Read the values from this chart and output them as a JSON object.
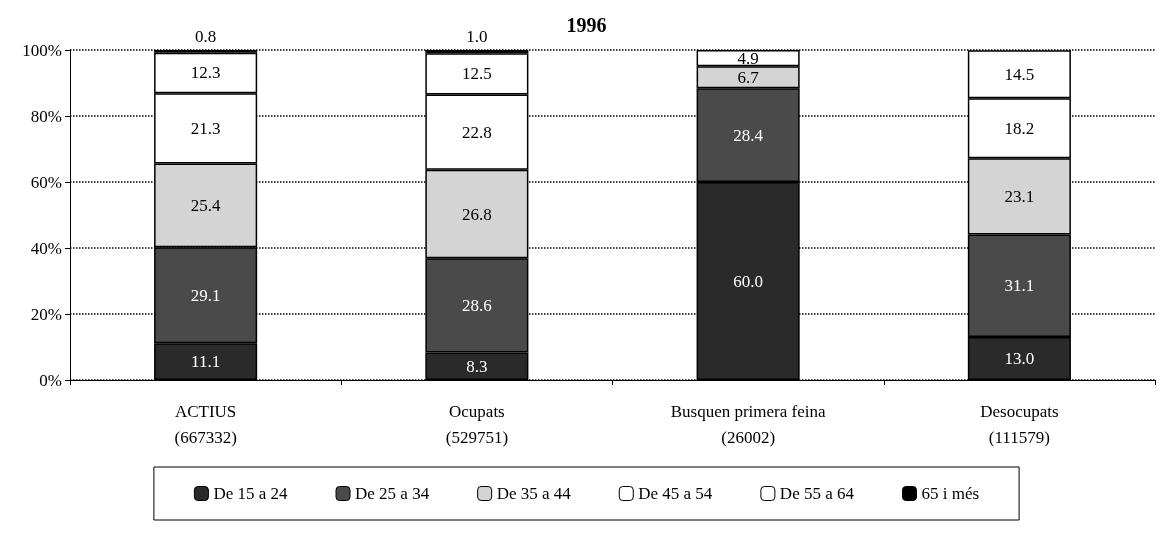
{
  "chart_data": {
    "type": "bar",
    "title": "1996",
    "stacked": true,
    "categories": [
      "ACTIUS\n(667332)",
      "Ocupats\n(529751)",
      "Busquen primera feina\n(26002)",
      "Desocupats\n(111579)"
    ],
    "series": [
      {
        "name": "De 15 a 24",
        "color": "#2a2a2a",
        "values": [
          11.1,
          8.3,
          60.0,
          13.0
        ],
        "value_labels": [
          "11.1",
          "8.3",
          "60.0",
          "13.0"
        ]
      },
      {
        "name": "De 25 a 34",
        "color": "#4a4a4a",
        "values": [
          29.1,
          28.6,
          28.4,
          31.1
        ],
        "value_labels": [
          "29.1",
          "28.6",
          "28.4",
          "31.1"
        ]
      },
      {
        "name": "De 35 a 44",
        "color": "#d4d4d4",
        "values": [
          25.4,
          26.8,
          6.7,
          23.1
        ],
        "value_labels": [
          "25.4",
          "26.8",
          "6.7",
          "23.1"
        ]
      },
      {
        "name": "De 45 a 54",
        "color": "#ffffff",
        "values": [
          21.3,
          22.8,
          4.9,
          18.2
        ],
        "value_labels": [
          "21.3",
          "22.8",
          "4.9",
          "18.2"
        ]
      },
      {
        "name": "De 55 a 64",
        "color": "#ffffff",
        "values": [
          12.3,
          12.5,
          null,
          14.5
        ],
        "value_labels": [
          "12.3",
          "12.5",
          null,
          "14.5"
        ]
      },
      {
        "name": "65 i més",
        "color": "#000000",
        "values": [
          0.8,
          1.0,
          null,
          null
        ],
        "value_labels": [
          "0.8",
          "1.0",
          null,
          null
        ]
      }
    ],
    "ylim": [
      0,
      100
    ],
    "yticks": [
      {
        "value": 0,
        "label": "0%"
      },
      {
        "value": 20,
        "label": "20%"
      },
      {
        "value": 40,
        "label": "40%"
      },
      {
        "value": 60,
        "label": "60%"
      },
      {
        "value": 80,
        "label": "80%"
      },
      {
        "value": 100,
        "label": "100%"
      }
    ],
    "grid": "y",
    "legend": "bottom"
  }
}
